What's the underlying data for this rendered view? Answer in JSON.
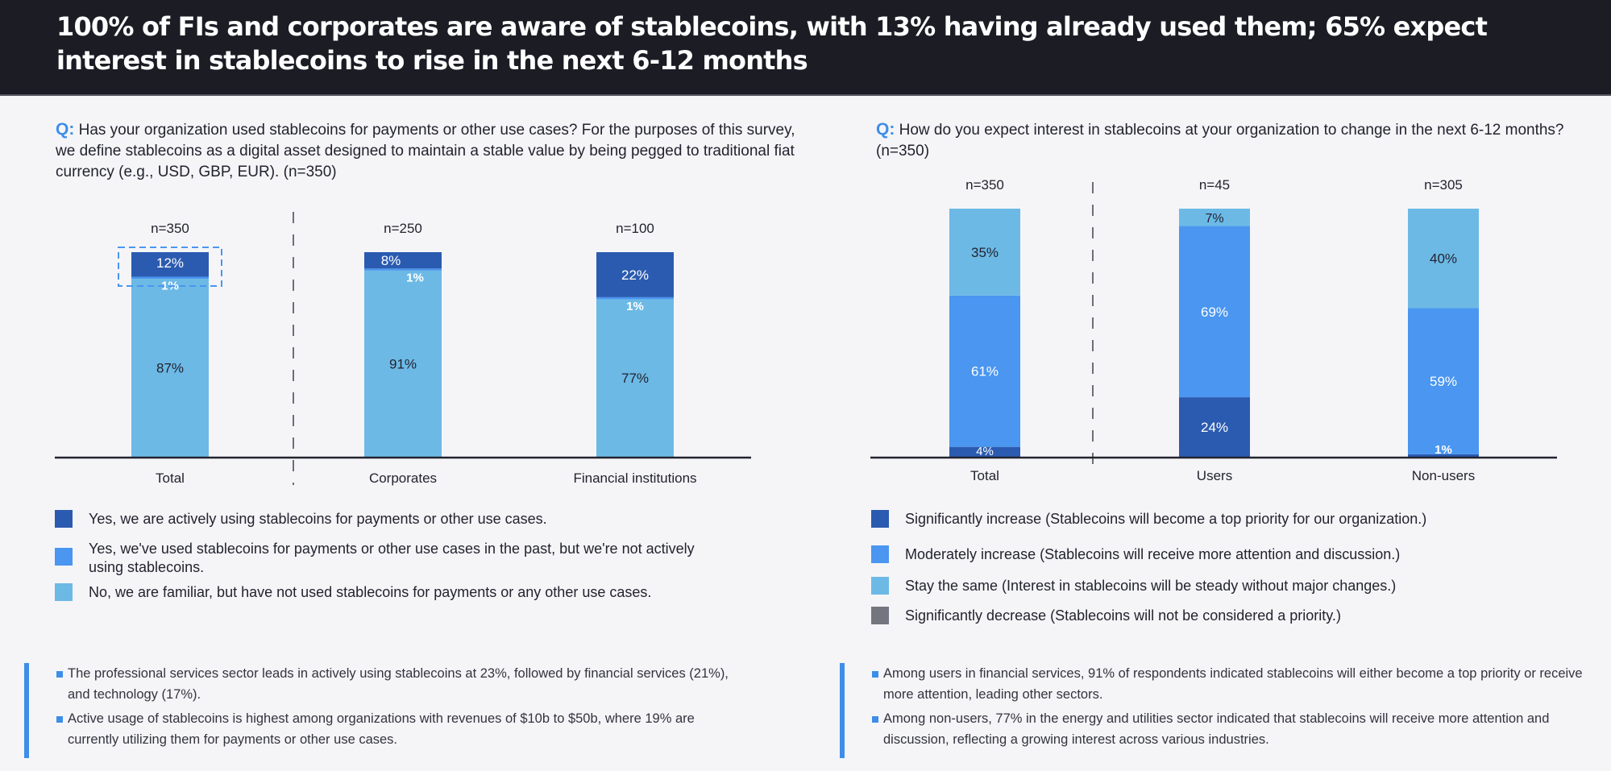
{
  "header": {
    "title": "100% of FIs and corporates are aware of stablecoins, with 13% having already used them; 65% expect interest in stablecoins to rise in the next 6-12 months"
  },
  "colors": {
    "dark_blue": "#2b5bb0",
    "mid_blue": "#4a96f0",
    "light_blue": "#6cb9e6",
    "gray": "#75757f",
    "accent": "#3e8ee8",
    "header_bg": "#1b1c24"
  },
  "left_panel": {
    "question_prefix": "Q:",
    "question_text": "Has your organization used stablecoins for payments or other use cases? For the purposes of this survey, we define stablecoins as a digital asset designed to maintain a stable value by being pegged to traditional fiat currency (e.g., USD, GBP, EUR). (n=350)",
    "legend": [
      {
        "label": "Yes, we are actively using stablecoins for payments or other use cases.",
        "color": "#2b5bb0"
      },
      {
        "label": "Yes, we've used stablecoins for payments or other use cases in the past, but we're not actively using stablecoins.",
        "color": "#4a96f0"
      },
      {
        "label": "No, we are familiar, but have not used stablecoins for payments or any other use cases.",
        "color": "#6cb9e6"
      }
    ],
    "insights": [
      "The professional services sector leads in actively using stablecoins at 23%, followed by financial services (21%), and technology (17%).",
      "Active usage of stablecoins is highest among organizations with revenues of $10b to $50b, where 19% are currently utilizing them for payments or other use cases."
    ]
  },
  "right_panel": {
    "question_prefix": "Q:",
    "question_text": "How do you expect interest in stablecoins at your organization to change in the next 6-12 months? (n=350)",
    "legend": [
      {
        "label": "Significantly increase (Stablecoins will become a top priority for our organization.)",
        "color": "#2b5bb0"
      },
      {
        "label": "Moderately increase (Stablecoins will receive more attention and discussion.)",
        "color": "#4a96f0"
      },
      {
        "label": "Stay the same (Interest in stablecoins will be steady without major changes.)",
        "color": "#6cb9e6"
      },
      {
        "label": "Significantly decrease (Stablecoins will not be considered a priority.)",
        "color": "#75757f"
      }
    ],
    "insights": [
      "Among users in financial services, 91% of respondents indicated stablecoins will either become a top priority or receive more attention, leading other sectors.",
      "Among non-users, 77% in the energy and utilities sector indicated that stablecoins will receive more attention and discussion, reflecting a growing interest across various industries."
    ]
  },
  "chart_data": [
    {
      "type": "bar",
      "stacked": true,
      "title": "Has your organization used stablecoins for payments or other use cases?",
      "categories": [
        "Total",
        "Corporates",
        "Financial institutions"
      ],
      "sample_sizes": [
        "n=350",
        "n=250",
        "n=100"
      ],
      "series": [
        {
          "name": "No, we are familiar, but have not used stablecoins for payments or any other use cases.",
          "color": "#6cb9e6",
          "values": [
            87,
            91,
            77
          ],
          "labels": [
            "87%",
            "91%",
            "77%"
          ]
        },
        {
          "name": "Yes, we've used stablecoins for payments or other use cases in the past, but we're not actively using stablecoins.",
          "color": "#4a96f0",
          "values": [
            1,
            1,
            1
          ],
          "labels": [
            "1%",
            "1%",
            "1%"
          ]
        },
        {
          "name": "Yes, we are actively using stablecoins for payments or other use cases.",
          "color": "#2b5bb0",
          "values": [
            12,
            8,
            22
          ],
          "labels": [
            "12%",
            "8%",
            "22%"
          ]
        }
      ],
      "highlighted_category": "Total",
      "divider_after": "Total",
      "xlabel": "",
      "ylabel": "",
      "ylim": [
        0,
        100
      ],
      "grid": false
    },
    {
      "type": "bar",
      "stacked": true,
      "title": "How do you expect interest in stablecoins at your organization to change in the next 6-12 months?",
      "categories": [
        "Total",
        "Users",
        "Non-users"
      ],
      "sample_sizes": [
        "n=350",
        "n=45",
        "n=305"
      ],
      "series": [
        {
          "name": "Significantly increase (Stablecoins will become a top priority for our organization.)",
          "color": "#2b5bb0",
          "values": [
            4,
            24,
            1
          ],
          "labels": [
            "4%",
            "24%",
            "1%"
          ]
        },
        {
          "name": "Moderately increase (Stablecoins will receive more attention and discussion.)",
          "color": "#4a96f0",
          "values": [
            61,
            69,
            59
          ],
          "labels": [
            "61%",
            "69%",
            "59%"
          ]
        },
        {
          "name": "Stay the same (Interest in stablecoins will be steady without major changes.)",
          "color": "#6cb9e6",
          "values": [
            35,
            7,
            40
          ],
          "labels": [
            "35%",
            "7%",
            "40%"
          ]
        },
        {
          "name": "Significantly decrease (Stablecoins will not be considered a priority.)",
          "color": "#75757f",
          "values": [
            0,
            0,
            0
          ],
          "labels": [
            "",
            "",
            ""
          ]
        }
      ],
      "divider_after": "Total",
      "xlabel": "",
      "ylabel": "",
      "ylim": [
        0,
        100
      ],
      "grid": false
    }
  ]
}
